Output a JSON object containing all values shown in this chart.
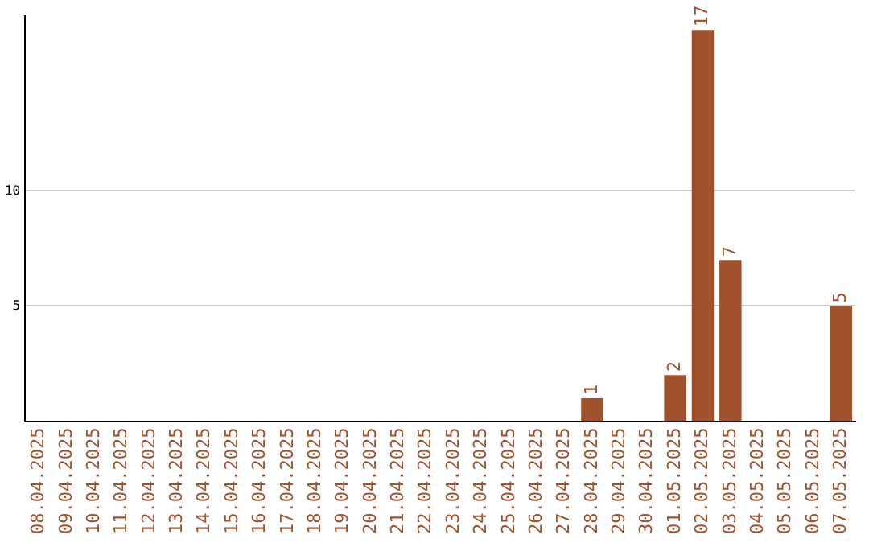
{
  "chart_data": {
    "type": "bar",
    "categories": [
      "08.04.2025",
      "09.04.2025",
      "10.04.2025",
      "11.04.2025",
      "12.04.2025",
      "13.04.2025",
      "14.04.2025",
      "15.04.2025",
      "16.04.2025",
      "17.04.2025",
      "18.04.2025",
      "19.04.2025",
      "20.04.2025",
      "21.04.2025",
      "22.04.2025",
      "23.04.2025",
      "24.04.2025",
      "25.04.2025",
      "26.04.2025",
      "27.04.2025",
      "28.04.2025",
      "29.04.2025",
      "30.04.2025",
      "01.05.2025",
      "02.05.2025",
      "03.05.2025",
      "04.05.2025",
      "05.05.2025",
      "06.05.2025",
      "07.05.2025"
    ],
    "values": [
      0,
      0,
      0,
      0,
      0,
      0,
      0,
      0,
      0,
      0,
      0,
      0,
      0,
      0,
      0,
      0,
      0,
      0,
      0,
      0,
      1,
      0,
      0,
      2,
      17,
      7,
      0,
      0,
      0,
      5
    ],
    "value_labels": [
      null,
      null,
      null,
      null,
      null,
      null,
      null,
      null,
      null,
      null,
      null,
      null,
      null,
      null,
      null,
      null,
      null,
      null,
      null,
      null,
      "1",
      null,
      null,
      "2",
      "17",
      "7",
      null,
      null,
      null,
      "5"
    ],
    "color": "#a0522d",
    "ylim": [
      0,
      17.6
    ],
    "yticks": [
      5,
      10
    ],
    "grid": "y",
    "legend": false
  }
}
